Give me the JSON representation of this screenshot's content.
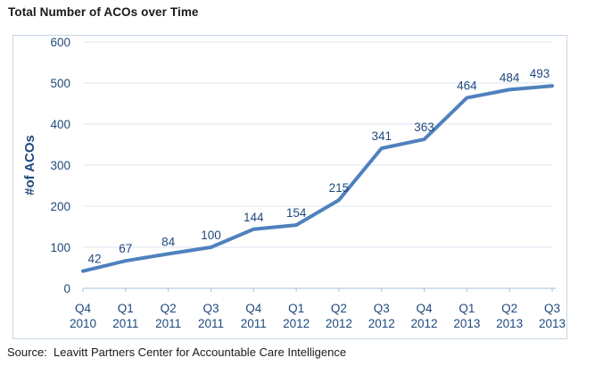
{
  "page": {
    "title": "Total Number of ACOs over Time",
    "source": "Source:  Leavitt Partners Center for Accountable Care Intelligence"
  },
  "chart_data": {
    "type": "line",
    "title": "Total Number of ACOs over Time",
    "categories": [
      [
        "Q4",
        "2010"
      ],
      [
        "Q1",
        "2011"
      ],
      [
        "Q2",
        "2011"
      ],
      [
        "Q3",
        "2011"
      ],
      [
        "Q4",
        "2011"
      ],
      [
        "Q1",
        "2012"
      ],
      [
        "Q2",
        "2012"
      ],
      [
        "Q3",
        "2012"
      ],
      [
        "Q4",
        "2012"
      ],
      [
        "Q1",
        "2013"
      ],
      [
        "Q2",
        "2013"
      ],
      [
        "Q3",
        "2013"
      ]
    ],
    "values": [
      42,
      67,
      84,
      100,
      144,
      154,
      215,
      341,
      363,
      464,
      484,
      493
    ],
    "data_labels": true,
    "xlabel": "",
    "ylabel": "#of ACOs",
    "ylim": [
      0,
      600
    ],
    "ytick_step": 100,
    "grid": true,
    "legend": "none",
    "source": "Source:  Leavitt Partners Center for Accountable Care Intelligence",
    "colors": {
      "line": "#4f81bd",
      "labels": "#1f497d",
      "grid": "#dce6f2",
      "axis": "#a9bfd9",
      "border": "#c7d5e8",
      "text": "#1a1a1a"
    }
  }
}
